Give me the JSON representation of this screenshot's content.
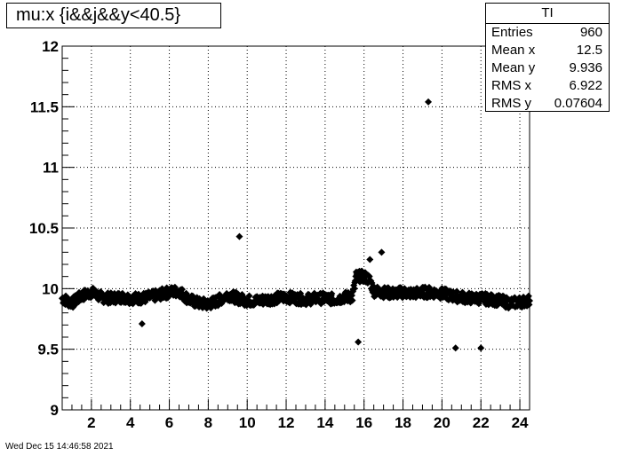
{
  "window": {
    "timestamp": "Wed Dec 15 14:46:58 2021"
  },
  "stats_box": {
    "name": "TI",
    "rows": [
      {
        "label": "Entries",
        "value": "960"
      },
      {
        "label": "Mean x",
        "value": "12.5"
      },
      {
        "label": "Mean y",
        "value": "9.936"
      },
      {
        "label": "RMS x",
        "value": "6.922"
      },
      {
        "label": "RMS y",
        "value": "0.07604"
      }
    ]
  },
  "chart_data": {
    "type": "scatter",
    "title": "mu:x {i&&j&&y<40.5}",
    "xlabel": "",
    "ylabel": "",
    "xlim": [
      0.5,
      24.5
    ],
    "ylim": [
      9,
      12
    ],
    "xticks": [
      2,
      4,
      6,
      8,
      10,
      12,
      14,
      16,
      18,
      20,
      22,
      24
    ],
    "yticks": [
      9,
      9.5,
      10,
      10.5,
      11,
      11.5,
      12
    ],
    "grid": true,
    "marker_color": "#000000",
    "band": [
      [
        0.5,
        9.92
      ],
      [
        1.0,
        9.88
      ],
      [
        1.5,
        9.94
      ],
      [
        2.0,
        9.97
      ],
      [
        2.5,
        9.93
      ],
      [
        3.0,
        9.92
      ],
      [
        3.5,
        9.93
      ],
      [
        4.0,
        9.92
      ],
      [
        4.5,
        9.92
      ],
      [
        5.0,
        9.93
      ],
      [
        5.5,
        9.95
      ],
      [
        6.0,
        9.97
      ],
      [
        6.5,
        9.98
      ],
      [
        7.0,
        9.91
      ],
      [
        7.5,
        9.88
      ],
      [
        8.0,
        9.87
      ],
      [
        8.5,
        9.9
      ],
      [
        9.0,
        9.95
      ],
      [
        9.5,
        9.92
      ],
      [
        10.0,
        9.9
      ],
      [
        10.5,
        9.9
      ],
      [
        11.0,
        9.91
      ],
      [
        11.5,
        9.92
      ],
      [
        12.0,
        9.93
      ],
      [
        12.5,
        9.92
      ],
      [
        13.0,
        9.91
      ],
      [
        13.5,
        9.92
      ],
      [
        14.0,
        9.92
      ],
      [
        14.5,
        9.91
      ],
      [
        15.0,
        9.93
      ],
      [
        15.4,
        9.93
      ],
      [
        15.6,
        10.1
      ],
      [
        16.0,
        10.1
      ],
      [
        16.3,
        10.07
      ],
      [
        16.5,
        9.98
      ],
      [
        17.0,
        9.97
      ],
      [
        17.5,
        9.96
      ],
      [
        18.0,
        9.97
      ],
      [
        18.5,
        9.96
      ],
      [
        19.0,
        9.97
      ],
      [
        19.5,
        9.97
      ],
      [
        20.0,
        9.96
      ],
      [
        20.5,
        9.94
      ],
      [
        21.0,
        9.93
      ],
      [
        21.5,
        9.92
      ],
      [
        22.0,
        9.92
      ],
      [
        22.5,
        9.91
      ],
      [
        23.0,
        9.9
      ],
      [
        23.5,
        9.88
      ],
      [
        24.0,
        9.89
      ],
      [
        24.5,
        9.9
      ]
    ],
    "outliers": [
      [
        4.6,
        9.71
      ],
      [
        9.6,
        10.43
      ],
      [
        15.7,
        9.56
      ],
      [
        16.3,
        10.24
      ],
      [
        16.9,
        10.3
      ],
      [
        19.3,
        11.54
      ],
      [
        20.7,
        9.51
      ],
      [
        22.0,
        9.51
      ]
    ]
  }
}
